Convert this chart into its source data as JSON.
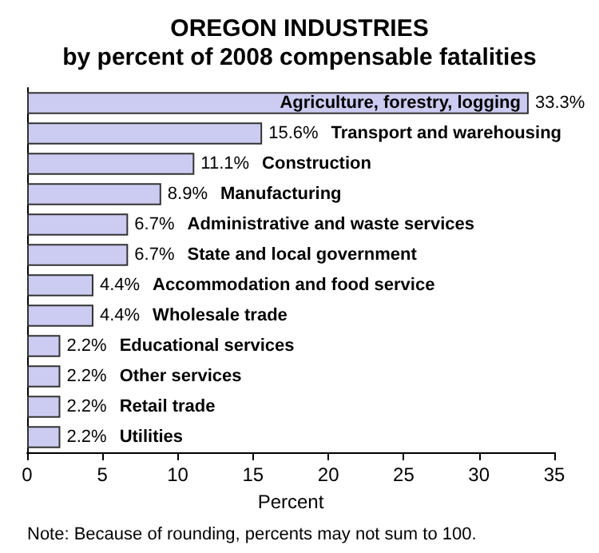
{
  "chart_data": {
    "type": "bar",
    "orientation": "horizontal",
    "title": "OREGON INDUSTRIES",
    "subtitle": "by percent of 2008 compensable fatalities",
    "xlabel": "Percent",
    "categories": [
      "Agriculture, forestry, logging",
      "Transport and warehousing",
      "Construction",
      "Manufacturing",
      "Administrative and waste services",
      "State and local government",
      "Accommodation and food service",
      "Wholesale trade",
      "Educational services",
      "Other services",
      "Retail trade",
      "Utilities"
    ],
    "values": [
      33.3,
      15.6,
      11.1,
      8.9,
      6.7,
      6.7,
      4.4,
      4.4,
      2.2,
      2.2,
      2.2,
      2.2
    ],
    "value_labels": [
      "33.3%",
      "15.6%",
      "11.1%",
      "8.9%",
      "6.7%",
      "6.7%",
      "4.4%",
      "4.4%",
      "2.2%",
      "2.2%",
      "2.2%",
      "2.2%"
    ],
    "color": "#ccccf2",
    "xlim": [
      0,
      35
    ],
    "xticks": [
      0,
      5,
      10,
      15,
      20,
      25,
      30,
      35
    ],
    "grid": false,
    "annotations": [
      "Note: Because of rounding, percents may not sum to 100."
    ]
  }
}
